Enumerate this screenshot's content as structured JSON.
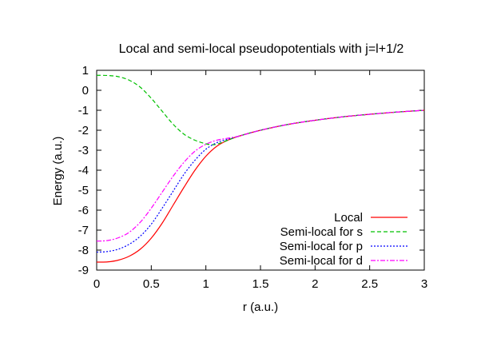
{
  "chart_data": {
    "type": "line",
    "title": "Local and semi-local pseudopotentials with j=l+1/2",
    "xlabel": "r (a.u.)",
    "ylabel": "Energy (a.u.)",
    "xlim": [
      0,
      3
    ],
    "ylim": [
      -9,
      1
    ],
    "x_ticks": [
      0,
      0.5,
      1,
      1.5,
      2,
      2.5,
      3
    ],
    "x_tick_labels": [
      "0",
      "0.5",
      "1",
      "1.5",
      "2",
      "2.5",
      "3"
    ],
    "y_ticks": [
      1,
      0,
      -1,
      -2,
      -3,
      -4,
      -5,
      -6,
      -7,
      -8,
      -9
    ],
    "y_tick_labels": [
      "1",
      "0",
      "-1",
      "-2",
      "-3",
      "-4",
      "-5",
      "-6",
      "-7",
      "-8",
      "-9"
    ],
    "grid": false,
    "legend_position": "bottom-right",
    "series": [
      {
        "name": "Local",
        "color": "#ff0000",
        "dash": "solid",
        "x": [
          0,
          0.1,
          0.2,
          0.3,
          0.4,
          0.5,
          0.6,
          0.7,
          0.8,
          0.9,
          1.0,
          1.1,
          1.2,
          1.3,
          1.5,
          1.75,
          2.0,
          2.25,
          2.5,
          2.75,
          3.0
        ],
        "y": [
          -8.6,
          -8.59,
          -8.5,
          -8.3,
          -7.95,
          -7.4,
          -6.65,
          -5.75,
          -4.85,
          -4.0,
          -3.3,
          -2.8,
          -2.5,
          -2.3,
          -2.0,
          -1.71,
          -1.5,
          -1.33,
          -1.2,
          -1.09,
          -1.0
        ]
      },
      {
        "name": "Semi-local for s",
        "color": "#00c000",
        "dash": "dash",
        "x": [
          0,
          0.1,
          0.2,
          0.3,
          0.4,
          0.5,
          0.6,
          0.7,
          0.8,
          0.9,
          1.0,
          1.05,
          1.1,
          1.2,
          1.3,
          1.5,
          1.75,
          2.0,
          2.25,
          2.5,
          2.75,
          3.0
        ],
        "y": [
          0.75,
          0.74,
          0.68,
          0.5,
          0.15,
          -0.4,
          -1.05,
          -1.7,
          -2.2,
          -2.5,
          -2.68,
          -2.72,
          -2.7,
          -2.5,
          -2.3,
          -2.0,
          -1.71,
          -1.5,
          -1.33,
          -1.2,
          -1.09,
          -1.0
        ]
      },
      {
        "name": "Semi-local for p",
        "color": "#0000ff",
        "dash": "dot",
        "x": [
          0,
          0.1,
          0.2,
          0.3,
          0.4,
          0.5,
          0.6,
          0.7,
          0.8,
          0.9,
          1.0,
          1.1,
          1.2,
          1.3,
          1.5,
          1.75,
          2.0,
          2.25,
          2.5,
          2.75,
          3.0
        ],
        "y": [
          -8.1,
          -8.07,
          -7.95,
          -7.7,
          -7.3,
          -6.7,
          -5.9,
          -5.05,
          -4.2,
          -3.5,
          -2.95,
          -2.62,
          -2.45,
          -2.3,
          -2.0,
          -1.71,
          -1.5,
          -1.33,
          -1.2,
          -1.09,
          -1.0
        ]
      },
      {
        "name": "Semi-local for d",
        "color": "#ff00ff",
        "dash": "dashdot",
        "x": [
          0,
          0.1,
          0.2,
          0.3,
          0.4,
          0.5,
          0.6,
          0.7,
          0.8,
          0.9,
          1.0,
          1.1,
          1.2,
          1.3,
          1.5,
          1.75,
          2.0,
          2.25,
          2.5,
          2.75,
          3.0
        ],
        "y": [
          -7.55,
          -7.52,
          -7.38,
          -7.1,
          -6.6,
          -5.9,
          -5.1,
          -4.3,
          -3.6,
          -3.05,
          -2.7,
          -2.5,
          -2.4,
          -2.3,
          -2.0,
          -1.71,
          -1.5,
          -1.33,
          -1.2,
          -1.09,
          -1.0
        ]
      }
    ]
  }
}
